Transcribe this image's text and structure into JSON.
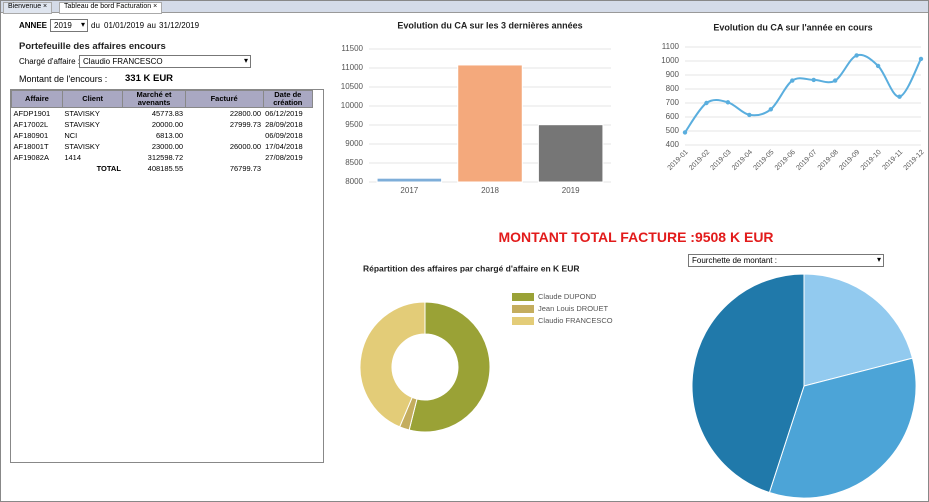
{
  "tabs": [
    "Bienvenue",
    "Tableau de bord Facturation"
  ],
  "filters": {
    "year_label": "ANNEE :",
    "year": "2019",
    "from_label": "du",
    "from": "01/01/2019",
    "to_label": "au",
    "to": "31/12/2019"
  },
  "portfolio": {
    "title": "Portefeuille des affaires encours",
    "manager_label": "Chargé d'affaire :",
    "manager": "Claudio FRANCESCO",
    "amount_label": "Montant de l'encours :",
    "amount": "331 K EUR"
  },
  "table": {
    "columns": [
      "Affaire",
      "Client",
      "Marché et avenants",
      "Facturé",
      "Date de création"
    ],
    "rows": [
      {
        "affaire": "AFDP1901",
        "client": "STAVISKY",
        "marche": "45773.83",
        "facture": "22800.00",
        "date": "06/12/2019"
      },
      {
        "affaire": "AF17002L",
        "client": "STAVISKY",
        "marche": "20000.00",
        "facture": "27999.73",
        "date": "28/09/2018"
      },
      {
        "affaire": "AF180901",
        "client": "NCI",
        "marche": "6813.00",
        "date": "06/09/2018"
      },
      {
        "affaire": "AF18001T",
        "client": "STAVISKY",
        "marche": "23000.00",
        "facture": "26000.00",
        "date": "17/04/2018"
      },
      {
        "affaire": "AF19082A",
        "client": "1414",
        "marche": "312598.72",
        "date": "27/08/2019"
      }
    ],
    "total": {
      "label": "TOTAL",
      "marche": "408185.55",
      "facture": "76799.73"
    }
  },
  "headline": "MONTANT TOTAL FACTURE :9508 K EUR",
  "range_select": "Fourchette de montant :",
  "chart_data": [
    {
      "type": "bar",
      "title": "Evolution du CA sur les 3 dernières années",
      "categories": [
        "2017",
        "2018",
        "2019"
      ],
      "values": [
        8100,
        11080,
        9508
      ],
      "colors": [
        "#7eaed9",
        "#f4a97c",
        "#767676"
      ],
      "ylim": [
        8000,
        11500
      ],
      "yticks": [
        8000,
        8500,
        9000,
        9500,
        10000,
        10500,
        11000,
        11500
      ],
      "grid": true
    },
    {
      "type": "line",
      "title": "Evolution du CA sur l'année en cours",
      "categories": [
        "2019-01",
        "2019-02",
        "2019-03",
        "2019-04",
        "2019-05",
        "2019-06",
        "2019-07",
        "2019-08",
        "2019-09",
        "2019-10",
        "2019-11",
        "2019-12"
      ],
      "values": [
        490,
        700,
        705,
        615,
        655,
        860,
        865,
        860,
        1040,
        965,
        745,
        1015
      ],
      "color": "#5aaede",
      "ylim": [
        400,
        1100
      ],
      "yticks": [
        400,
        500,
        600,
        700,
        800,
        900,
        1000,
        1100
      ],
      "grid": true
    },
    {
      "type": "donut",
      "title": "Répartition des affaires par chargé d'affaire en K EUR",
      "categories": [
        "Claude DUPOND",
        "Jean Louis DROUET",
        "Claudio FRANCESCO"
      ],
      "values": [
        220,
        10,
        178
      ],
      "colors": [
        "#9aa236",
        "#c4ad5e",
        "#e3cc78"
      ]
    },
    {
      "type": "pie",
      "values": [
        21,
        34,
        45
      ],
      "colors": [
        "#92caef",
        "#4ca4d7",
        "#2079aa"
      ]
    }
  ]
}
